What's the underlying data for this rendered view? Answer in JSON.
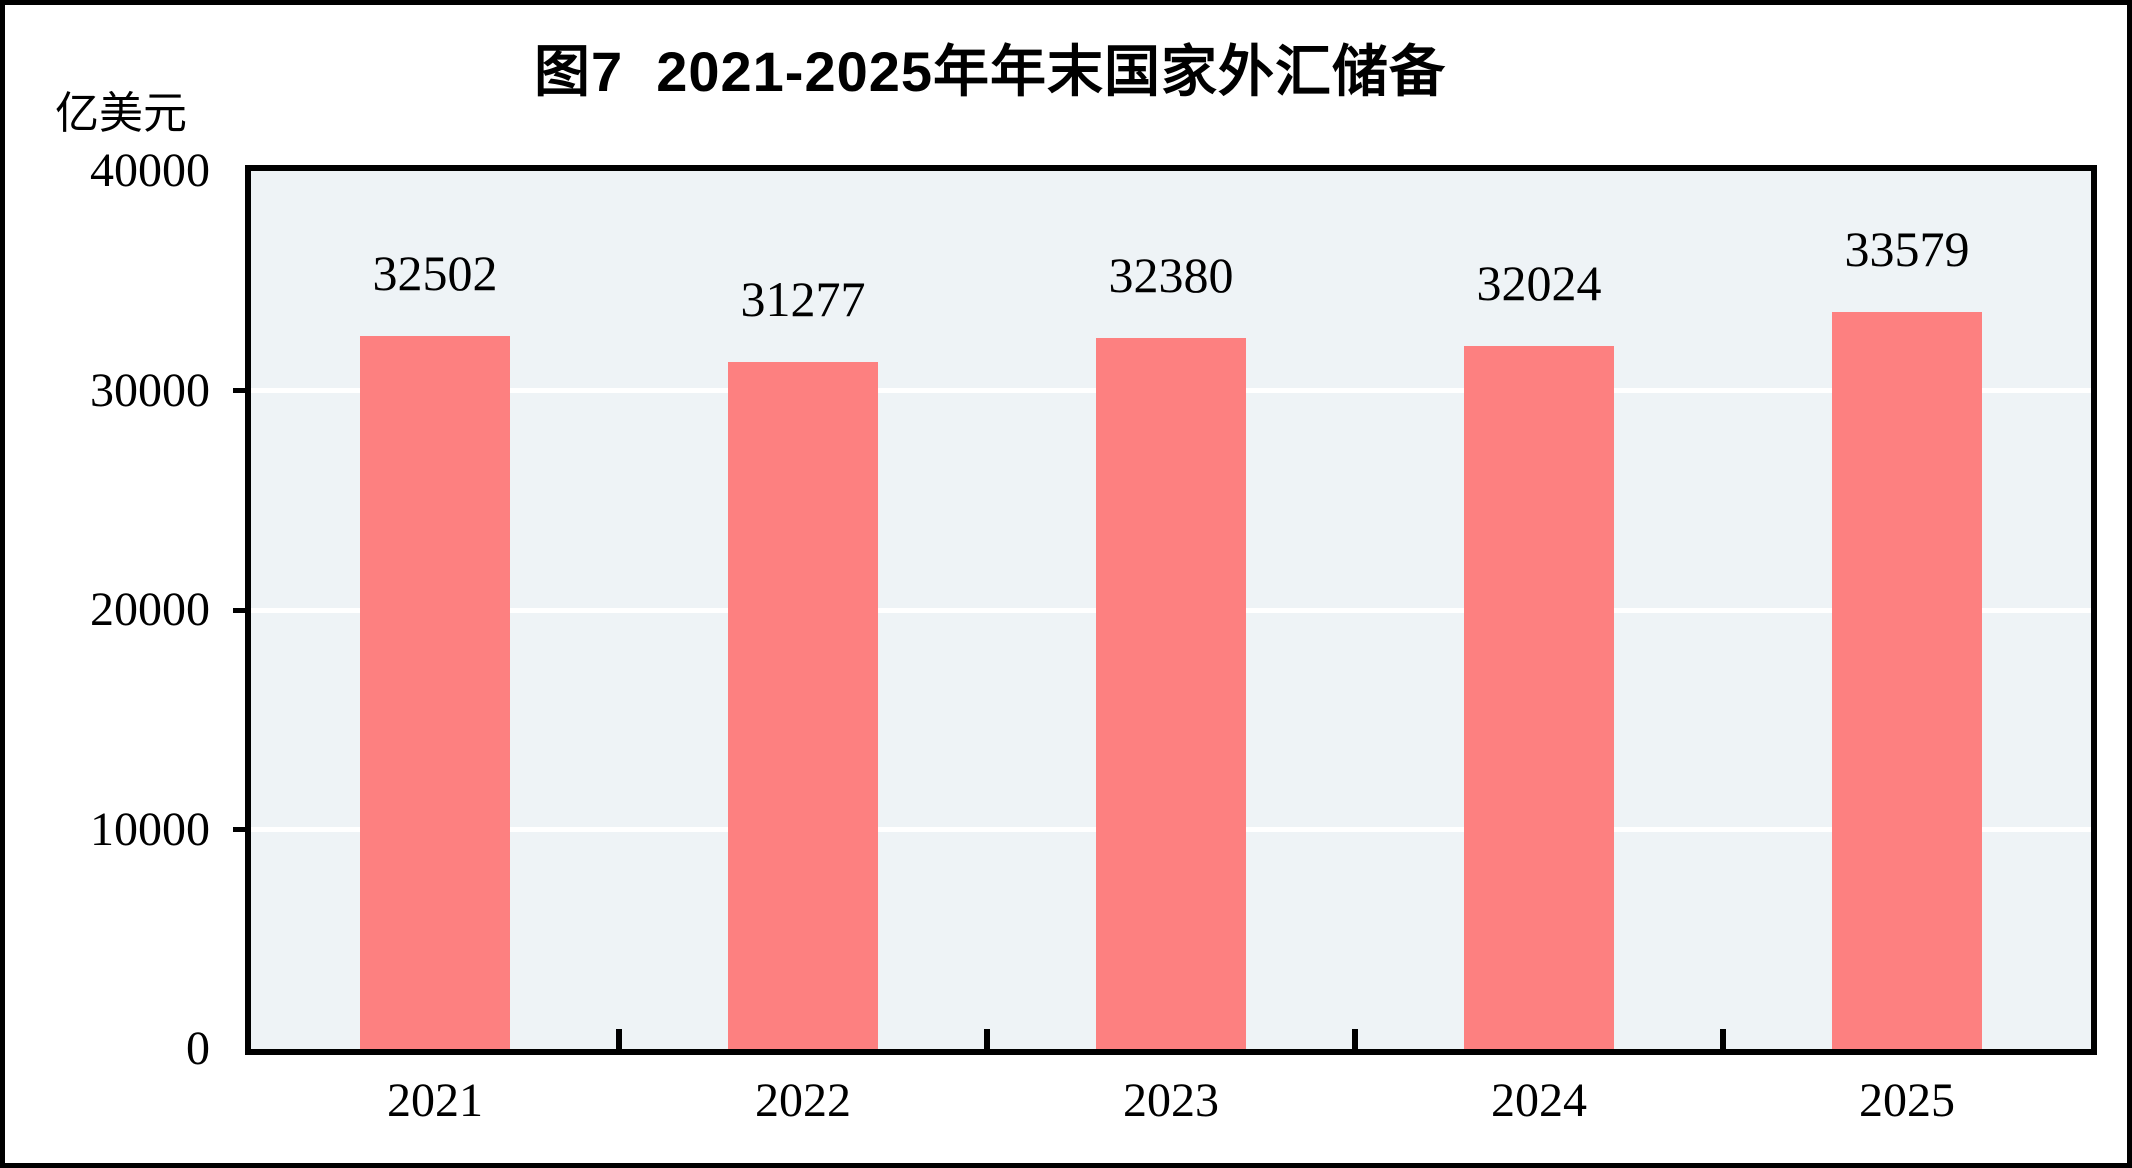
{
  "figure": {
    "title": "图7  2021-2025年年末国家外汇储备",
    "unit_label": "亿美元"
  },
  "chart_data": {
    "type": "bar",
    "title": "图7  2021-2025年年末国家外汇储备",
    "subtitle": "",
    "unit": "亿美元",
    "xlabel": "",
    "ylabel": "亿美元",
    "categories": [
      "2021",
      "2022",
      "2023",
      "2024",
      "2025"
    ],
    "values": [
      32502,
      31277,
      32380,
      32024,
      33579
    ],
    "ylim": [
      0,
      40000
    ],
    "yticks": [
      0,
      10000,
      20000,
      30000,
      40000
    ],
    "gridlines_at": [
      10000,
      20000,
      30000
    ],
    "grid": "horizontal-white",
    "legend_position": "none",
    "colors": {
      "bar": "#FD8080",
      "plot_background": "#EEF3F6",
      "gridline": "#FFFFFF",
      "text": "#000000",
      "border": "#000000"
    }
  }
}
